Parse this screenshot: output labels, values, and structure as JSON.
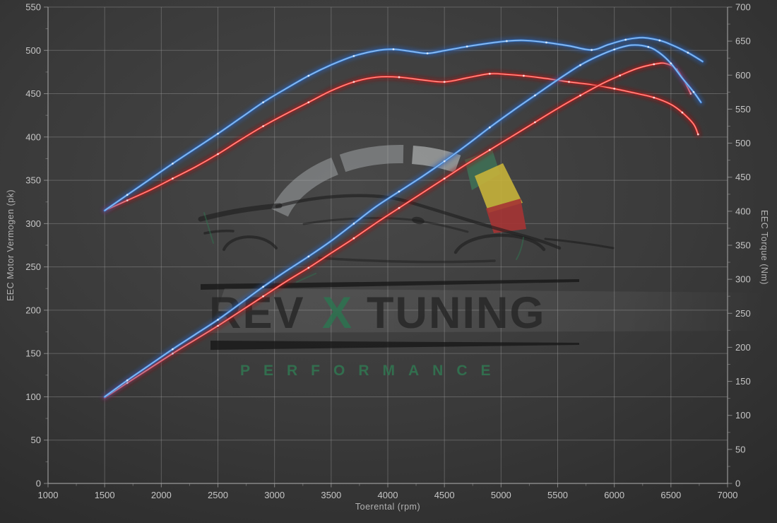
{
  "watermark": {
    "brand_rev": "REV",
    "brand_x": "X",
    "brand_tuning": "TUNING",
    "subtitle": "PERFORMANCE",
    "x_color": "#2d7350",
    "subtitle_color": "#2f7a52",
    "gauge_green": "#3f6f55",
    "gauge_yellow": "#c7b23a",
    "gauge_red": "#a53434",
    "gauge_arc_gray": "#b9bdbf"
  },
  "colors": {
    "background": "#3d3d3d",
    "grid": "#9b9b9b",
    "axis": "#a8a8a8",
    "tick_text": "#c6c6c6",
    "blue_glow": "#2a5fb8",
    "blue_main": "#3b82d8",
    "blue_core": "#a9cdf4",
    "red_glow": "#991414",
    "red_main": "#e02424",
    "red_core": "#ffb3a6",
    "marker_dot": "#ffffff"
  },
  "chart_data": {
    "type": "line",
    "title": "",
    "xlabel": "Toerental (rpm)",
    "ylabel_left": "EEC Motor Vermogen (pk)",
    "ylabel_right": "EEC Torque (Nm)",
    "grid": true,
    "legend": "none",
    "x_axis": {
      "min": 1000,
      "max": 7000,
      "step": 500,
      "ticks": [
        1000,
        1500,
        2000,
        2500,
        3000,
        3500,
        4000,
        4500,
        5000,
        5500,
        6000,
        6500,
        7000
      ]
    },
    "y_left": {
      "min": 0,
      "max": 550,
      "step": 50,
      "ticks": [
        0,
        50,
        100,
        150,
        200,
        250,
        300,
        350,
        400,
        450,
        500,
        550
      ]
    },
    "y_right": {
      "min": 0,
      "max": 700,
      "step": 50,
      "ticks": [
        0,
        50,
        100,
        150,
        200,
        250,
        300,
        350,
        400,
        450,
        500,
        550,
        600,
        650,
        700
      ]
    },
    "series": [
      {
        "id": "torque-stock-red",
        "color_key": "red",
        "axis": "right",
        "unit": "Nm",
        "points": [
          [
            1500,
            401
          ],
          [
            1700,
            416
          ],
          [
            1900,
            431
          ],
          [
            2100,
            448
          ],
          [
            2300,
            465
          ],
          [
            2500,
            484
          ],
          [
            2700,
            505
          ],
          [
            2900,
            525
          ],
          [
            3100,
            543
          ],
          [
            3300,
            560
          ],
          [
            3500,
            577
          ],
          [
            3700,
            590
          ],
          [
            3900,
            597
          ],
          [
            4100,
            597
          ],
          [
            4300,
            593
          ],
          [
            4500,
            590
          ],
          [
            4700,
            596
          ],
          [
            4900,
            602
          ],
          [
            5050,
            601
          ],
          [
            5200,
            599
          ],
          [
            5400,
            595
          ],
          [
            5600,
            590
          ],
          [
            5800,
            586
          ],
          [
            6000,
            580
          ],
          [
            6200,
            573
          ],
          [
            6350,
            567
          ],
          [
            6500,
            557
          ],
          [
            6600,
            545
          ],
          [
            6700,
            528
          ],
          [
            6740,
            513
          ]
        ]
      },
      {
        "id": "torque-tuned-blue",
        "color_key": "blue",
        "axis": "right",
        "unit": "Nm",
        "points": [
          [
            1500,
            401
          ],
          [
            1700,
            424
          ],
          [
            1900,
            447
          ],
          [
            2100,
            470
          ],
          [
            2300,
            492
          ],
          [
            2500,
            514
          ],
          [
            2700,
            537
          ],
          [
            2900,
            560
          ],
          [
            3100,
            580
          ],
          [
            3300,
            599
          ],
          [
            3500,
            615
          ],
          [
            3700,
            628
          ],
          [
            3900,
            636
          ],
          [
            4050,
            638
          ],
          [
            4200,
            635
          ],
          [
            4350,
            632
          ],
          [
            4500,
            636
          ],
          [
            4700,
            642
          ],
          [
            4900,
            647
          ],
          [
            5050,
            650
          ],
          [
            5200,
            651
          ],
          [
            5400,
            648
          ],
          [
            5600,
            643
          ],
          [
            5800,
            637
          ],
          [
            5950,
            645
          ],
          [
            6100,
            652
          ],
          [
            6250,
            655
          ],
          [
            6400,
            651
          ],
          [
            6500,
            645
          ],
          [
            6650,
            633
          ],
          [
            6780,
            620
          ]
        ]
      },
      {
        "id": "power-stock-red",
        "color_key": "red",
        "axis": "left",
        "unit": "pk",
        "points": [
          [
            1500,
            99
          ],
          [
            1700,
            116
          ],
          [
            1900,
            133
          ],
          [
            2100,
            150
          ],
          [
            2300,
            166
          ],
          [
            2500,
            182
          ],
          [
            2700,
            199
          ],
          [
            2900,
            216
          ],
          [
            3100,
            233
          ],
          [
            3300,
            249
          ],
          [
            3500,
            266
          ],
          [
            3700,
            283
          ],
          [
            3900,
            301
          ],
          [
            4100,
            318
          ],
          [
            4300,
            335
          ],
          [
            4500,
            352
          ],
          [
            4700,
            369
          ],
          [
            4900,
            385
          ],
          [
            5100,
            401
          ],
          [
            5300,
            417
          ],
          [
            5500,
            433
          ],
          [
            5700,
            448
          ],
          [
            5900,
            462
          ],
          [
            6050,
            471
          ],
          [
            6200,
            479
          ],
          [
            6350,
            484
          ],
          [
            6450,
            485
          ],
          [
            6550,
            478
          ],
          [
            6620,
            464
          ],
          [
            6675,
            450
          ]
        ]
      },
      {
        "id": "power-tuned-blue",
        "color_key": "blue",
        "axis": "left",
        "unit": "pk",
        "points": [
          [
            1500,
            100
          ],
          [
            1700,
            119
          ],
          [
            1900,
            137
          ],
          [
            2100,
            155
          ],
          [
            2300,
            172
          ],
          [
            2500,
            189
          ],
          [
            2700,
            208
          ],
          [
            2900,
            227
          ],
          [
            3100,
            245
          ],
          [
            3300,
            262
          ],
          [
            3500,
            280
          ],
          [
            3700,
            300
          ],
          [
            3900,
            320
          ],
          [
            4100,
            337
          ],
          [
            4300,
            354
          ],
          [
            4500,
            372
          ],
          [
            4700,
            391
          ],
          [
            4900,
            411
          ],
          [
            5100,
            430
          ],
          [
            5300,
            448
          ],
          [
            5500,
            466
          ],
          [
            5700,
            483
          ],
          [
            5850,
            493
          ],
          [
            6000,
            501
          ],
          [
            6150,
            506
          ],
          [
            6300,
            504
          ],
          [
            6400,
            497
          ],
          [
            6500,
            485
          ],
          [
            6600,
            468
          ],
          [
            6700,
            452
          ],
          [
            6765,
            440
          ]
        ]
      }
    ]
  }
}
